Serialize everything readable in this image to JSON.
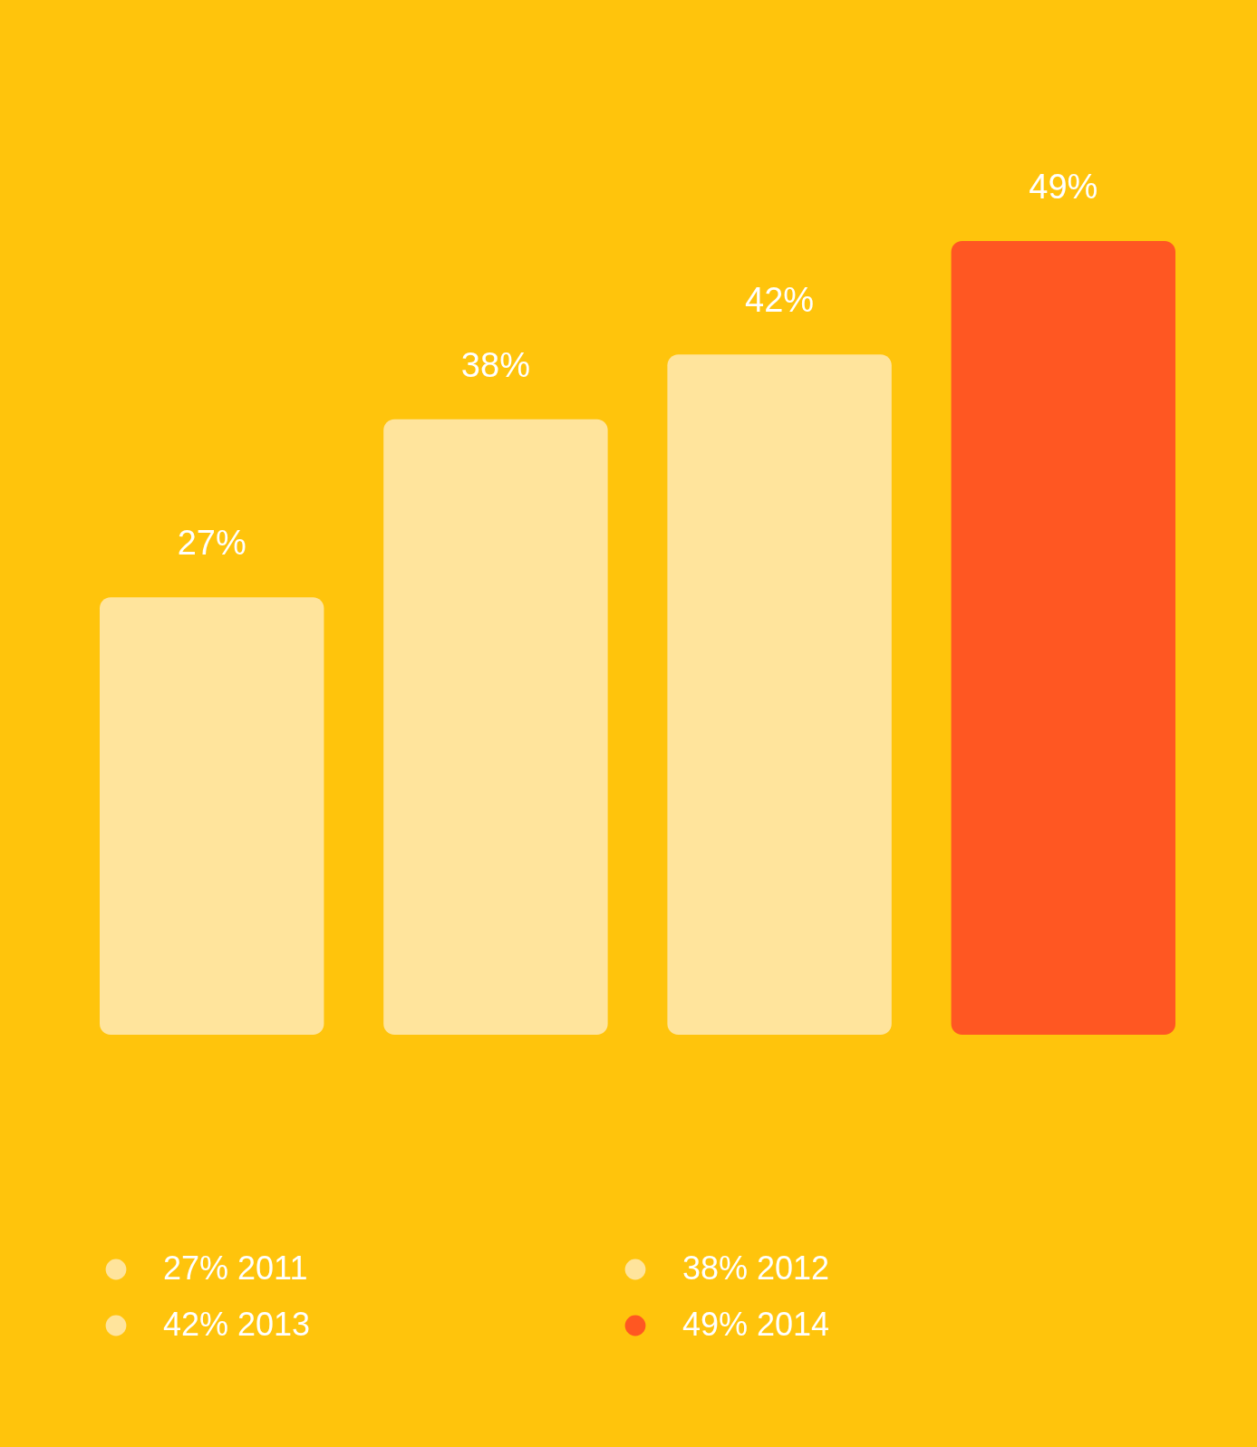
{
  "chart_data": {
    "type": "bar",
    "categories": [
      null,
      null,
      null,
      null
    ],
    "stacked": true,
    "series": [
      {
        "name": "27%  2011",
        "color": "#ffe49c",
        "values": [
          27,
          null,
          null,
          null
        ],
        "value_labels": [
          "27%",
          null,
          null,
          null
        ]
      },
      {
        "name": "38%  2012",
        "color": "#ffe49c",
        "values": [
          null,
          38,
          null,
          null
        ],
        "value_labels": [
          null,
          "38%",
          null,
          null
        ]
      },
      {
        "name": "42%  2013",
        "color": "#ffe49c",
        "values": [
          null,
          null,
          42,
          null
        ],
        "value_labels": [
          null,
          null,
          "42%",
          null
        ]
      },
      {
        "name": "49%  2014",
        "color": "#ff5722",
        "values": [
          null,
          null,
          null,
          49
        ],
        "value_labels": [
          null,
          null,
          null,
          "49%"
        ]
      }
    ],
    "legend": "bottom"
  }
}
